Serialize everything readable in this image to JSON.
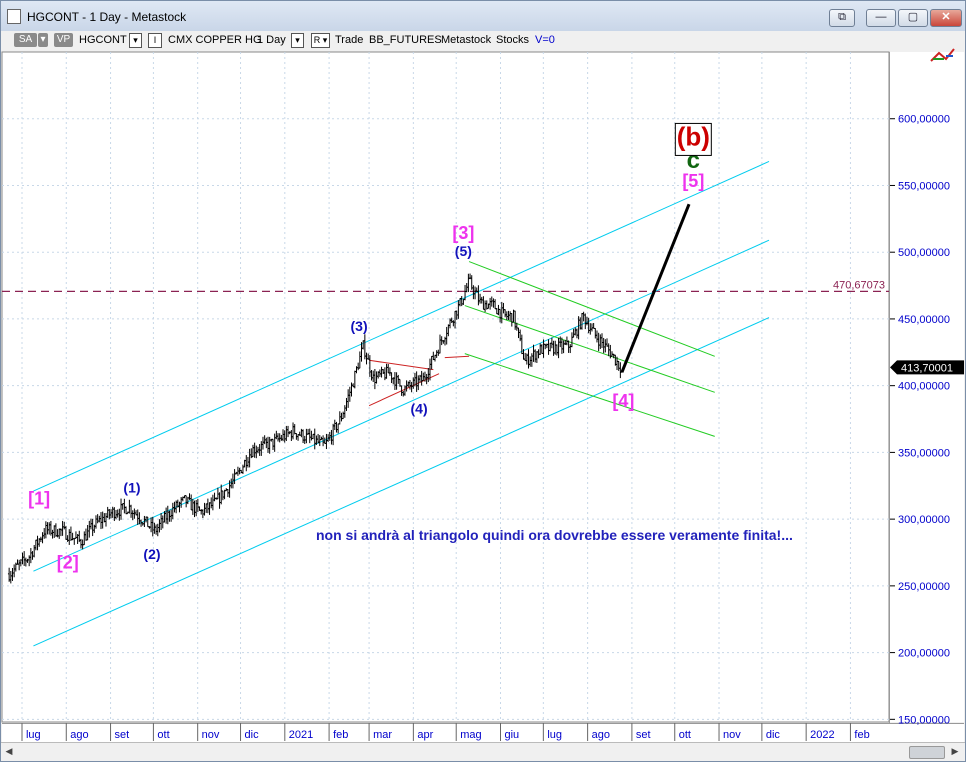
{
  "window": {
    "title": "HGCONT - 1 Day - Metastock",
    "buttons": {
      "restore_down": "⧉",
      "minimize": "—",
      "maximize": "▢",
      "close": "✕"
    }
  },
  "toolbar": {
    "sa": "SA",
    "vp": "VP",
    "symbol": "HGCONT",
    "symbol_dropdown": "▾",
    "lock": "I",
    "security_name": "CMX COPPER HG",
    "periodicity": "1 Day",
    "period_dropdown": "▾",
    "r": "R",
    "r_dropdown": "▾",
    "trade": "Trade",
    "source": "BB_FUTURES",
    "app": "Metastock",
    "type": "Stocks",
    "v": "V=0"
  },
  "colors": {
    "price_bars": "#000000",
    "channel": "#00ccee",
    "green_channel": "#22cc22",
    "triangle": "#cc2222",
    "wave_blue": "#1111bb",
    "wave_magenta": "#ee33ee",
    "wave_dark_green": "#116611",
    "b_label": "#cc0000",
    "axis_text": "#0000cc",
    "last_price_bg": "#000000",
    "hline": "#8b2252",
    "note_text": "#2222bb",
    "projection": "#000000"
  },
  "chart_data": {
    "type": "ohlc",
    "security": "CMX COPPER HG",
    "periodicity": "1 Day",
    "x_tick_labels": [
      "lug",
      "ago",
      "set",
      "ott",
      "nov",
      "dic",
      "2021",
      "feb",
      "mar",
      "apr",
      "mag",
      "giu",
      "lug",
      "ago",
      "set",
      "ott",
      "nov",
      "dic",
      "2022",
      "feb"
    ],
    "y_tick_labels": [
      "150,00000",
      "200,00000",
      "250,00000",
      "300,00000",
      "350,00000",
      "400,00000",
      "450,00000",
      "500,00000",
      "550,00000",
      "600,00000"
    ],
    "ylim": [
      148,
      650
    ],
    "last_price": "413,70001",
    "last_price_value": 413.7,
    "horizontal_line": {
      "label": "470,67073",
      "value": 470.67
    },
    "approx_close_path": [
      {
        "date": "2020-06-22",
        "close": 259
      },
      {
        "date": "2020-07-06",
        "close": 272
      },
      {
        "date": "2020-07-17",
        "close": 292
      },
      {
        "date": "2020-07-29",
        "close": 291
      },
      {
        "date": "2020-08-11",
        "close": 283
      },
      {
        "date": "2020-08-21",
        "close": 296
      },
      {
        "date": "2020-09-02",
        "close": 305
      },
      {
        "date": "2020-09-14",
        "close": 309
      },
      {
        "date": "2020-09-23",
        "close": 300
      },
      {
        "date": "2020-10-02",
        "close": 291
      },
      {
        "date": "2020-10-14",
        "close": 307
      },
      {
        "date": "2020-10-23",
        "close": 314
      },
      {
        "date": "2020-11-03",
        "close": 305
      },
      {
        "date": "2020-11-13",
        "close": 312
      },
      {
        "date": "2020-11-27",
        "close": 330
      },
      {
        "date": "2020-12-09",
        "close": 352
      },
      {
        "date": "2020-12-23",
        "close": 357
      },
      {
        "date": "2021-01-07",
        "close": 366
      },
      {
        "date": "2021-01-19",
        "close": 360
      },
      {
        "date": "2021-01-29",
        "close": 355
      },
      {
        "date": "2021-02-09",
        "close": 375
      },
      {
        "date": "2021-02-17",
        "close": 400
      },
      {
        "date": "2021-02-25",
        "close": 430
      },
      {
        "date": "2021-03-04",
        "close": 405
      },
      {
        "date": "2021-03-15",
        "close": 410
      },
      {
        "date": "2021-03-25",
        "close": 397
      },
      {
        "date": "2021-04-08",
        "close": 405
      },
      {
        "date": "2021-04-19",
        "close": 430
      },
      {
        "date": "2021-04-27",
        "close": 448
      },
      {
        "date": "2021-05-04",
        "close": 462
      },
      {
        "date": "2021-05-10",
        "close": 478
      },
      {
        "date": "2021-05-18",
        "close": 462
      },
      {
        "date": "2021-05-27",
        "close": 460
      },
      {
        "date": "2021-06-04",
        "close": 452
      },
      {
        "date": "2021-06-10",
        "close": 452
      },
      {
        "date": "2021-06-18",
        "close": 418
      },
      {
        "date": "2021-06-29",
        "close": 427
      },
      {
        "date": "2021-07-08",
        "close": 428
      },
      {
        "date": "2021-07-19",
        "close": 430
      },
      {
        "date": "2021-07-29",
        "close": 452
      },
      {
        "date": "2021-08-06",
        "close": 438
      },
      {
        "date": "2021-08-17",
        "close": 425
      },
      {
        "date": "2021-08-24",
        "close": 413.7
      }
    ],
    "channels": {
      "upper_cyan": [
        {
          "date": "2020-07-09",
          "price": 321
        },
        {
          "date": "2021-12-06",
          "price": 568
        }
      ],
      "middle_cyan": [
        {
          "date": "2020-07-09",
          "price": 261
        },
        {
          "date": "2021-12-06",
          "price": 509
        }
      ],
      "lower_cyan": [
        {
          "date": "2020-07-09",
          "price": 205
        },
        {
          "date": "2021-12-06",
          "price": 451
        }
      ],
      "green_upper": [
        {
          "date": "2021-05-10",
          "price": 493
        },
        {
          "date": "2021-10-29",
          "price": 422
        }
      ],
      "green_middle": [
        {
          "date": "2021-05-07",
          "price": 460
        },
        {
          "date": "2021-10-29",
          "price": 395
        }
      ],
      "green_lower": [
        {
          "date": "2021-05-07",
          "price": 424
        },
        {
          "date": "2021-10-29",
          "price": 362
        }
      ]
    },
    "triangle": {
      "upper": [
        {
          "date": "2021-03-01",
          "price": 419
        },
        {
          "date": "2021-04-15",
          "price": 412
        }
      ],
      "lower": [
        {
          "date": "2021-03-01",
          "price": 385
        },
        {
          "date": "2021-04-19",
          "price": 409
        }
      ],
      "extra": [
        {
          "date": "2021-04-23",
          "price": 421
        },
        {
          "date": "2021-05-10",
          "price": 422
        }
      ]
    },
    "projection": [
      {
        "date": "2021-08-25",
        "price": 410
      },
      {
        "date": "2021-10-11",
        "price": 536
      }
    ],
    "wave_labels": [
      {
        "text": "[1]",
        "date": "2020-07-13",
        "price": 311,
        "color": "magenta"
      },
      {
        "text": "[2]",
        "date": "2020-08-02",
        "price": 263,
        "color": "magenta"
      },
      {
        "text": "(1)",
        "date": "2020-09-16",
        "price": 320,
        "color": "blue"
      },
      {
        "text": "(2)",
        "date": "2020-09-30",
        "price": 270,
        "color": "blue"
      },
      {
        "text": "(3)",
        "date": "2021-02-22",
        "price": 441,
        "color": "blue"
      },
      {
        "text": "(4)",
        "date": "2021-04-05",
        "price": 379,
        "color": "blue"
      },
      {
        "text": "[3]",
        "date": "2021-05-06",
        "price": 510,
        "color": "magenta"
      },
      {
        "text": "(5)",
        "date": "2021-05-06",
        "price": 497,
        "color": "blue"
      },
      {
        "text": "[4]",
        "date": "2021-08-26",
        "price": 384,
        "color": "magenta"
      },
      {
        "text": "[5]",
        "date": "2021-10-14",
        "price": 549,
        "color": "magenta"
      },
      {
        "text": "c",
        "date": "2021-10-14",
        "price": 563,
        "color": "dark_green"
      },
      {
        "text": "(b)",
        "date": "2021-10-14",
        "price": 580,
        "color": "red"
      }
    ],
    "annotation": "non si andrà al triangolo quindi ora dovrebbe essere veramente finita!..."
  }
}
